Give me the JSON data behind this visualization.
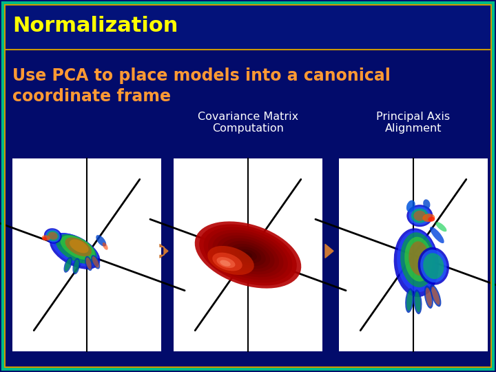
{
  "title": "Normalization",
  "subtitle_line1": "Use PCA to place models into a canonical",
  "subtitle_line2": "coordinate frame",
  "label1": "Covariance Matrix\nComputation",
  "label2": "Principal Axis\nAlignment",
  "bg_color": "#020b6b",
  "title_color": "#ffff00",
  "subtitle_color": "#ff9933",
  "label_color": "#ffffff",
  "title_bg_color": "#03127a",
  "border_color_outer": "#00bb88",
  "border_color_inner": "#cc9900",
  "arrow_color": "#cc7733",
  "box_bg": "#ffffff",
  "figsize": [
    7.2,
    5.4
  ],
  "dpi": 100
}
